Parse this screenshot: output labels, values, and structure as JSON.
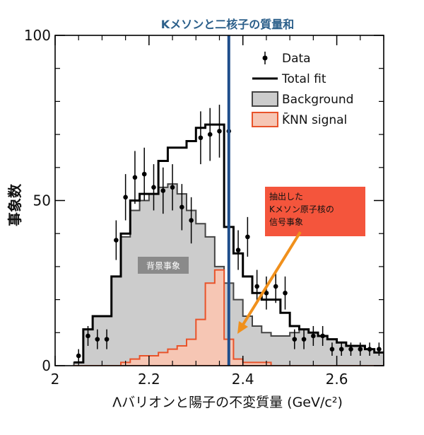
{
  "chart_data": {
    "type": "histogram",
    "title": "Kメソンと二核子の質量和",
    "xlabel": "Λバリオンと陽子の不変質量 (GeV/c²)",
    "ylabel": "事象数",
    "xlim": [
      2.0,
      2.7
    ],
    "ylim": [
      0,
      100
    ],
    "x_ticks": [
      2.0,
      2.2,
      2.4,
      2.6
    ],
    "x_tick_labels": [
      "2",
      "2.2",
      "2.4",
      "2.6"
    ],
    "y_ticks": [
      0,
      50,
      100
    ],
    "y_tick_labels": [
      "0",
      "50",
      "100"
    ],
    "bin_edges": [
      2.04,
      2.06,
      2.08,
      2.1,
      2.12,
      2.14,
      2.16,
      2.18,
      2.2,
      2.22,
      2.24,
      2.26,
      2.28,
      2.3,
      2.32,
      2.34,
      2.36,
      2.38,
      2.4,
      2.42,
      2.44,
      2.46,
      2.48,
      2.5,
      2.52,
      2.54,
      2.56,
      2.58,
      2.6,
      2.62,
      2.64,
      2.66,
      2.68,
      2.7
    ],
    "series": [
      {
        "name": "Data",
        "kind": "points",
        "x": [
          2.05,
          2.07,
          2.09,
          2.11,
          2.13,
          2.15,
          2.17,
          2.19,
          2.21,
          2.23,
          2.25,
          2.27,
          2.29,
          2.31,
          2.33,
          2.35,
          2.37,
          2.39,
          2.41,
          2.43,
          2.45,
          2.47,
          2.49,
          2.51,
          2.53,
          2.55,
          2.57,
          2.59,
          2.61,
          2.63,
          2.65,
          2.67,
          2.69
        ],
        "y": [
          3,
          9,
          8,
          8,
          38,
          51,
          57,
          58,
          54,
          53,
          54,
          48,
          44,
          69,
          70,
          71,
          71,
          35,
          39,
          24,
          22,
          24,
          22,
          8,
          8,
          9,
          9,
          5,
          5,
          5,
          5,
          5,
          5
        ],
        "err": [
          2,
          3,
          3,
          3,
          6,
          7,
          8,
          8,
          7,
          7,
          7,
          7,
          7,
          8,
          8,
          8,
          8,
          6,
          6,
          5,
          5,
          5,
          5,
          3,
          3,
          3,
          3,
          2,
          2,
          2,
          2,
          2,
          2
        ]
      },
      {
        "name": "Total fit",
        "kind": "step",
        "y": [
          1,
          11,
          15,
          15,
          27,
          40,
          50,
          52,
          52,
          62,
          66,
          66,
          68,
          72,
          73,
          73,
          42,
          34,
          27,
          22,
          20,
          20,
          16,
          12,
          11,
          10,
          9,
          8,
          7,
          6,
          6,
          5,
          4
        ]
      },
      {
        "name": "Background",
        "kind": "filled-step",
        "y": [
          1,
          11,
          15,
          15,
          27,
          39,
          47,
          50,
          52,
          54,
          55,
          52,
          47,
          43,
          39,
          30,
          25,
          20,
          15,
          12,
          10,
          9,
          9,
          10,
          11,
          10,
          9,
          8,
          7,
          6,
          6,
          5,
          4
        ]
      },
      {
        "name": "K̄NN signal",
        "kind": "filled-step",
        "y": [
          0,
          0,
          0,
          0,
          0,
          1,
          2,
          3,
          3,
          4,
          5,
          6,
          8,
          14,
          25,
          29,
          8,
          2,
          1,
          1,
          1,
          0,
          0,
          0,
          0,
          0,
          0,
          0,
          0,
          0,
          0,
          0,
          0
        ]
      }
    ],
    "vertical_line": {
      "x": 2.37,
      "color": "#1f4e8c"
    },
    "legend_position": "top-right",
    "annotations": {
      "background_label": "背景事象",
      "callout": [
        "抽出した",
        "Kメソン原子核の",
        "信号事象"
      ]
    },
    "colors": {
      "background_fill": "#cccccc",
      "background_stroke": "#444444",
      "signal_fill": "#f6c6b4",
      "signal_stroke": "#e8532a",
      "total_fit": "#000000",
      "callout_fill": "#f4553c",
      "arrow": "#f0901c"
    }
  }
}
